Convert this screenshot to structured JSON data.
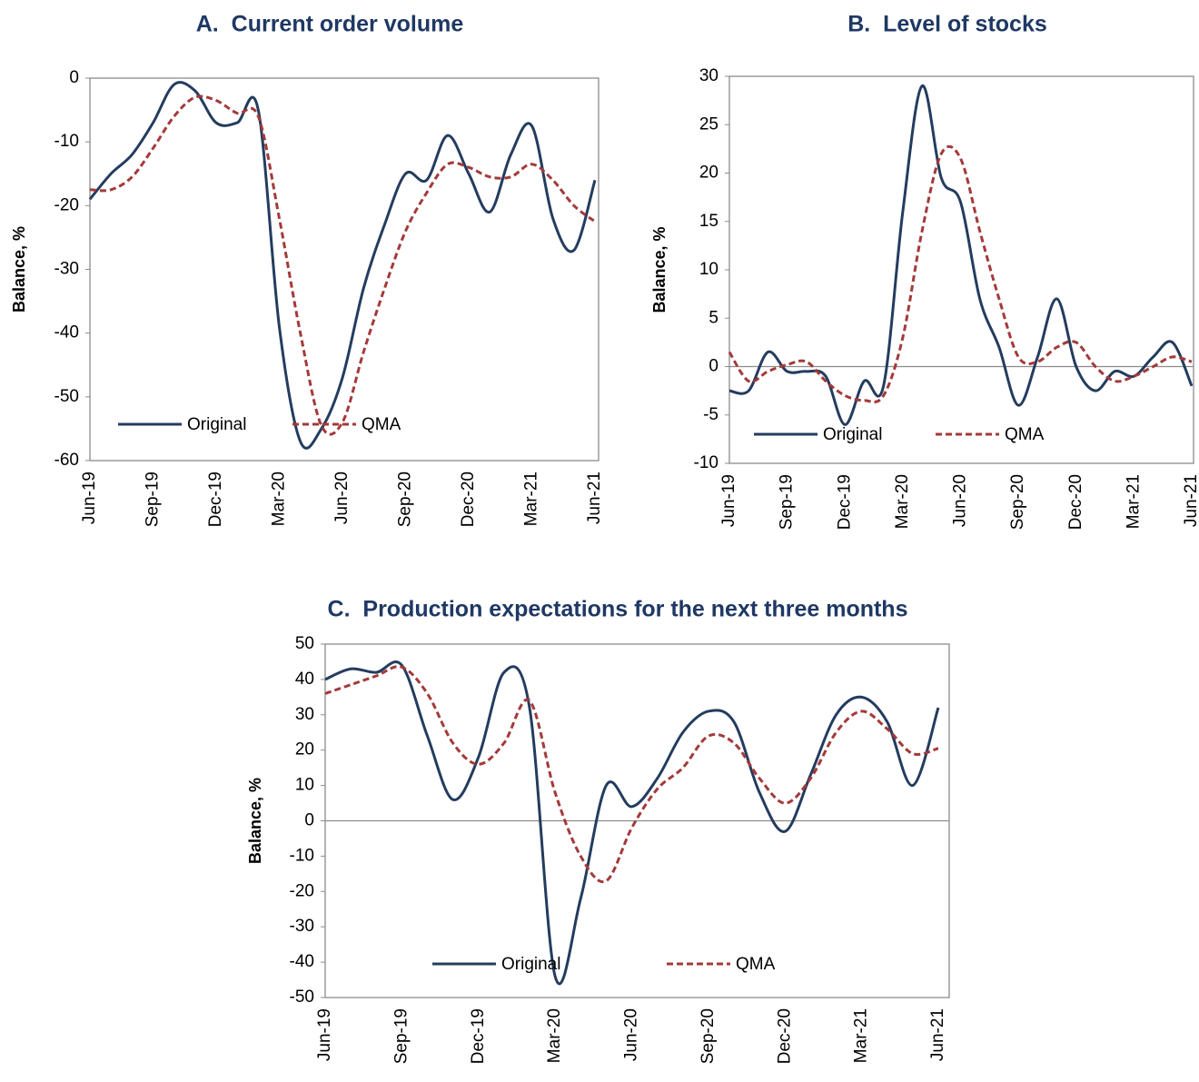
{
  "chart_data": [
    {
      "type": "line",
      "title": "A.  Current order volume",
      "y_label": "Balance, %",
      "categories": [
        "Jun-19",
        null,
        null,
        "Sep-19",
        null,
        null,
        "Dec-19",
        null,
        null,
        "Mar-20",
        null,
        null,
        "Jun-20",
        null,
        null,
        "Sep-20",
        null,
        null,
        "Dec-20",
        null,
        null,
        "Mar-21",
        null,
        null,
        "Jun-21"
      ],
      "series": [
        {
          "name": "Original",
          "color": "#243c5e",
          "values": [
            -19,
            -15,
            -12,
            -7,
            -1,
            -2,
            -7,
            -7,
            -5,
            -39,
            -57,
            -55,
            -47,
            -33,
            -23,
            -15,
            -16,
            -9,
            -15,
            -21,
            -12,
            -7.5,
            -22,
            -27,
            -16
          ]
        },
        {
          "name": "QMA",
          "color": "#a33a3a",
          "dashed": true,
          "values": [
            -17.5,
            -17.5,
            -15.5,
            -11,
            -6,
            -3,
            -3.5,
            -5.5,
            -6,
            -22,
            -40,
            -54.5,
            -54,
            -43,
            -33,
            -24,
            -18,
            -13.5,
            -14,
            -15.5,
            -15.5,
            -13.5,
            -16,
            -20,
            -22.5
          ]
        }
      ],
      "ylim": [
        -60,
        0
      ],
      "yticks": [
        -60,
        -50,
        -40,
        -30,
        -20,
        -10,
        0
      ],
      "legend": "lower center"
    },
    {
      "type": "line",
      "title": "B.  Level of stocks",
      "y_label": "Balance, %",
      "categories": [
        "Jun-19",
        null,
        null,
        "Sep-19",
        null,
        null,
        "Dec-19",
        null,
        null,
        "Mar-20",
        null,
        null,
        "Jun-20",
        null,
        null,
        "Sep-20",
        null,
        null,
        "Dec-20",
        null,
        null,
        "Mar-21",
        null,
        null,
        "Jun-21"
      ],
      "series": [
        {
          "name": "Original",
          "color": "#243c5e",
          "values": [
            -2.5,
            -2.5,
            1.5,
            -0.5,
            -0.5,
            -1,
            -6,
            -1.5,
            -2,
            16,
            29,
            19.5,
            17,
            7,
            2,
            -4,
            1,
            7,
            0,
            -2.5,
            -0.5,
            -1,
            1,
            2.5,
            -2
          ]
        },
        {
          "name": "QMA",
          "color": "#a33a3a",
          "dashed": true,
          "values": [
            1.5,
            -1.5,
            -0.5,
            0.2,
            0.5,
            -1.5,
            -3,
            -3.5,
            -3,
            3,
            14,
            22,
            21.5,
            14,
            7,
            1,
            0.5,
            2,
            2.5,
            0,
            -1.5,
            -1,
            0,
            1,
            0.5
          ]
        }
      ],
      "ylim": [
        -10,
        30
      ],
      "yticks": [
        -10,
        -5,
        0,
        5,
        10,
        15,
        20,
        25,
        30
      ],
      "legend": "lower center"
    },
    {
      "type": "line",
      "title": "C.  Production expectations for the next three months",
      "y_label": "Balance, %",
      "categories": [
        "Jun-19",
        null,
        null,
        "Sep-19",
        null,
        null,
        "Dec-19",
        null,
        null,
        "Mar-20",
        null,
        null,
        "Jun-20",
        null,
        null,
        "Sep-20",
        null,
        null,
        "Dec-20",
        null,
        null,
        "Mar-21",
        null,
        null,
        "Jun-21"
      ],
      "series": [
        {
          "name": "Original",
          "color": "#243c5e",
          "values": [
            40,
            43,
            42,
            44,
            24,
            6,
            18,
            42,
            32,
            -44,
            -22,
            10,
            4,
            12,
            25,
            31,
            28,
            8,
            -3,
            13,
            30,
            35,
            28,
            10,
            32
          ]
        },
        {
          "name": "QMA",
          "color": "#a33a3a",
          "dashed": true,
          "values": [
            36,
            38.5,
            41,
            43.5,
            36,
            22,
            16,
            22,
            34,
            8,
            -10,
            -17,
            -2,
            9,
            15,
            24,
            22,
            12,
            5,
            12,
            25,
            31,
            26,
            19,
            20.5
          ]
        }
      ],
      "ylim": [
        -50,
        50
      ],
      "yticks": [
        -50,
        -40,
        -30,
        -20,
        -10,
        0,
        10,
        20,
        30,
        40,
        50
      ],
      "legend": "lower center"
    }
  ]
}
